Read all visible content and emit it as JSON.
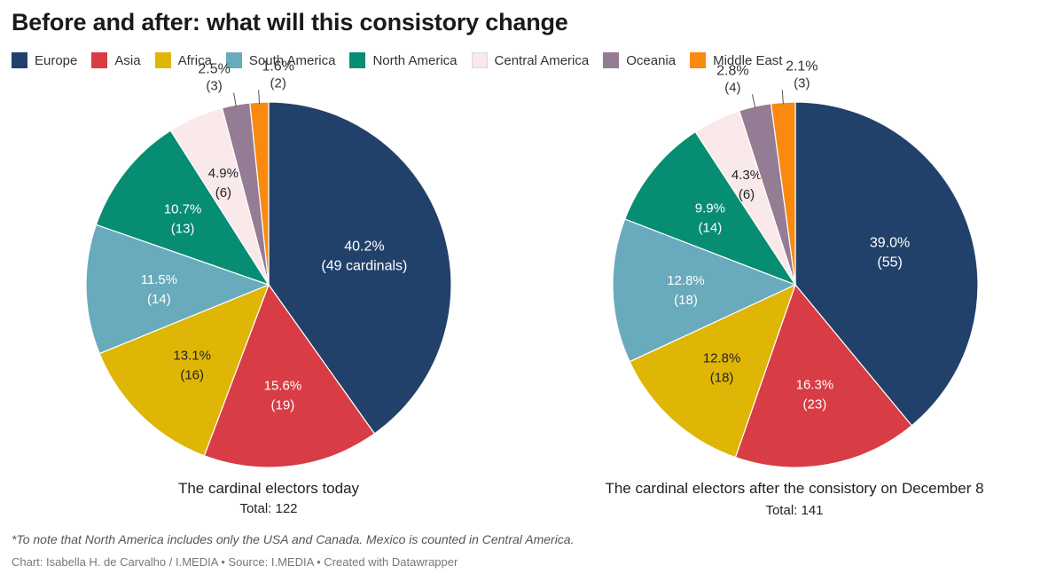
{
  "title": "Before and after: what will this consistory change",
  "legend": [
    {
      "label": "Europe",
      "color": "#22416a"
    },
    {
      "label": "Asia",
      "color": "#d83c44"
    },
    {
      "label": "Africa",
      "color": "#dfb506"
    },
    {
      "label": "South America",
      "color": "#6aaabd"
    },
    {
      "label": "North America",
      "color": "#068d72"
    },
    {
      "label": "Central America",
      "color": "#fae9ea"
    },
    {
      "label": "Oceania",
      "color": "#957c95"
    },
    {
      "label": "Middle East",
      "color": "#f98a0f"
    }
  ],
  "chart_data": [
    {
      "type": "pie",
      "caption": "The cardinal electors today",
      "total": "Total: 122",
      "slices": [
        {
          "name": "Europe",
          "value": 49,
          "pct": "40.2%",
          "count": "(49 cardinals)"
        },
        {
          "name": "Asia",
          "value": 19,
          "pct": "15.6%",
          "count": "(19)"
        },
        {
          "name": "Africa",
          "value": 16,
          "pct": "13.1%",
          "count": "(16)"
        },
        {
          "name": "South America",
          "value": 14,
          "pct": "11.5%",
          "count": "(14)"
        },
        {
          "name": "North America",
          "value": 13,
          "pct": "10.7%",
          "count": "(13)"
        },
        {
          "name": "Central America",
          "value": 6,
          "pct": "4.9%",
          "count": "(6)"
        },
        {
          "name": "Oceania",
          "value": 3,
          "pct": "2.5%",
          "count": "(3)"
        },
        {
          "name": "Middle East",
          "value": 2,
          "pct": "1.6%",
          "count": "(2)"
        }
      ]
    },
    {
      "type": "pie",
      "caption": "The cardinal electors after the consistory on December 8",
      "total": "Total: 141",
      "slices": [
        {
          "name": "Europe",
          "value": 55,
          "pct": "39.0%",
          "count": "(55)"
        },
        {
          "name": "Asia",
          "value": 23,
          "pct": "16.3%",
          "count": "(23)"
        },
        {
          "name": "Africa",
          "value": 18,
          "pct": "12.8%",
          "count": "(18)"
        },
        {
          "name": "South America",
          "value": 18,
          "pct": "12.8%",
          "count": "(18)"
        },
        {
          "name": "North America",
          "value": 14,
          "pct": "9.9%",
          "count": "(14)"
        },
        {
          "name": "Central America",
          "value": 6,
          "pct": "4.3%",
          "count": "(6)"
        },
        {
          "name": "Oceania",
          "value": 4,
          "pct": "2.8%",
          "count": "(4)"
        },
        {
          "name": "Middle East",
          "value": 3,
          "pct": "2.1%",
          "count": "(3)"
        }
      ]
    }
  ],
  "footnote": "*To note that North America includes only the USA and Canada. Mexico is counted in Central America.",
  "credit": "Chart: Isabella H. de Carvalho / I.MEDIA • Source: I.MEDIA • Created with Datawrapper"
}
